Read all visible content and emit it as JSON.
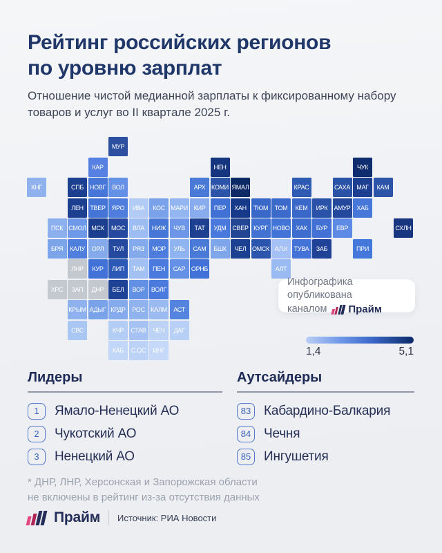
{
  "colors": {
    "background": "#eef0f3",
    "title_navy": "#1f3769",
    "subtitle_gray": "#3d4456",
    "tile_label": "#ffffff",
    "no_data_gray": "#c4c8cf",
    "badge_bg": "#ffffff",
    "badge_text": "#6e7585",
    "brand_navy": "#242d58",
    "brand_pink": "#e0487f",
    "brand_crimson": "#b02458",
    "legend_light": "#b9cef5",
    "legend_dark": "#0d2a68",
    "rank_border": "#5479c8",
    "rank_number": "#3a62ba",
    "list_text": "#262f55",
    "divider": "#8f97a7",
    "footnote_gray": "#9aa1ad",
    "source_text": "#333c52"
  },
  "header": {
    "title_line1": "Рейтинг российских регионов",
    "title_line2": "по уровню зарплат",
    "subtitle_line1": "Отношение чистой медианной зарплаты к фиксированному набору",
    "subtitle_line2": "товаров и услуг во II квартале 2025 г."
  },
  "attribution": {
    "line1": "Инфографика опубликована",
    "line2_prefix": "каналом",
    "brand": "Прайм"
  },
  "legend": {
    "min_label": "1,4",
    "max_label": "5,1"
  },
  "leaders": {
    "heading": "Лидеры",
    "items": [
      {
        "rank": "1",
        "name": "Ямало-Ненецкий АО"
      },
      {
        "rank": "2",
        "name": "Чукотский АО"
      },
      {
        "rank": "3",
        "name": "Ненецкий АО"
      }
    ]
  },
  "outsiders": {
    "heading": "Аутсайдеры",
    "items": [
      {
        "rank": "83",
        "name": "Кабардино-Балкария"
      },
      {
        "rank": "84",
        "name": "Чечня"
      },
      {
        "rank": "85",
        "name": "Ингушетия"
      }
    ]
  },
  "footnote": {
    "line1": "* ДНР, ЛНР, Херсонская и Запорожская области",
    "line2": "не включены в рейтинг из-за отсутствия данных"
  },
  "footer": {
    "brand": "Прайм",
    "source": "Источник: РИА Новости"
  },
  "chart_data": {
    "type": "heatmap",
    "subtype": "tile-cartogram-of-russian-regions",
    "title": "Рейтинг российских регионов по уровню зарплат",
    "subtitle": "Отношение чистой медианной зарплаты к фиксированному набору товаров и услуг во II квартале 2025 г.",
    "colorbar": {
      "min": 1.4,
      "max": 5.1,
      "min_label": "1,4",
      "max_label": "5,1",
      "from": "#b9cef5",
      "to": "#0d2a68",
      "position": "right-middle"
    },
    "no_data_note": "серые тайлы — нет данных (ДНР, ЛНР, ХРС, ЗАП)",
    "grid": {
      "cols": 19,
      "rows": 11,
      "pitch": 29.5,
      "tile": 28
    },
    "regions": [
      {
        "code": "МУР",
        "row": 0,
        "col": 4,
        "color": "#2c509f"
      },
      {
        "code": "КАР",
        "row": 1,
        "col": 3,
        "color": "#5681e2"
      },
      {
        "code": "НЕН",
        "row": 1,
        "col": 9,
        "color": "#15357e"
      },
      {
        "code": "ЧУК",
        "row": 1,
        "col": 16,
        "color": "#0f2c6f"
      },
      {
        "code": "КНГ",
        "row": 2,
        "col": 0,
        "color": "#8fb2ee"
      },
      {
        "code": "СПБ",
        "row": 2,
        "col": 2,
        "color": "#1d3f8f"
      },
      {
        "code": "НОВГ",
        "row": 2,
        "col": 3,
        "color": "#4676d8"
      },
      {
        "code": "ВОЛ",
        "row": 2,
        "col": 4,
        "color": "#6490e6"
      },
      {
        "code": "АРХ",
        "row": 2,
        "col": 8,
        "color": "#4a7ad8"
      },
      {
        "code": "КОМИ",
        "row": 2,
        "col": 9,
        "color": "#2c55aa"
      },
      {
        "code": "ЯМАЛ",
        "row": 2,
        "col": 10,
        "color": "#0d2966"
      },
      {
        "code": "КРАС",
        "row": 2,
        "col": 13,
        "color": "#2e5ab4"
      },
      {
        "code": "САХА",
        "row": 2,
        "col": 15,
        "color": "#2a52a6"
      },
      {
        "code": "МАГ",
        "row": 2,
        "col": 16,
        "color": "#1c3f92"
      },
      {
        "code": "КАМ",
        "row": 2,
        "col": 17,
        "color": "#2c55aa"
      },
      {
        "code": "ЛЕН",
        "row": 3,
        "col": 2,
        "color": "#1d3f8f"
      },
      {
        "code": "ТВЕР",
        "row": 3,
        "col": 3,
        "color": "#4474d6"
      },
      {
        "code": "ЯРО",
        "row": 3,
        "col": 4,
        "color": "#4e7dde"
      },
      {
        "code": "ИВА",
        "row": 3,
        "col": 5,
        "color": "#b2cbf4"
      },
      {
        "code": "КОС",
        "row": 3,
        "col": 6,
        "color": "#7aa2ea"
      },
      {
        "code": "МАРИ",
        "row": 3,
        "col": 7,
        "color": "#94b6f0"
      },
      {
        "code": "КИР",
        "row": 3,
        "col": 8,
        "color": "#88acee"
      },
      {
        "code": "ПЕР",
        "row": 3,
        "col": 9,
        "color": "#4171d4"
      },
      {
        "code": "ХАН",
        "row": 3,
        "col": 10,
        "color": "#17398a"
      },
      {
        "code": "ТЮМ",
        "row": 3,
        "col": 11,
        "color": "#3a68c8"
      },
      {
        "code": "ТОМ",
        "row": 3,
        "col": 12,
        "color": "#3c6acb"
      },
      {
        "code": "КЕМ",
        "row": 3,
        "col": 13,
        "color": "#3a68c8"
      },
      {
        "code": "ИРК",
        "row": 3,
        "col": 14,
        "color": "#2a52a8"
      },
      {
        "code": "АМУР",
        "row": 3,
        "col": 15,
        "color": "#24499c"
      },
      {
        "code": "ХАБ",
        "row": 3,
        "col": 16,
        "color": "#4777d8"
      },
      {
        "code": "ПСК",
        "row": 4,
        "col": 1,
        "color": "#8cb0ee"
      },
      {
        "code": "СМОЛ",
        "row": 4,
        "col": 2,
        "color": "#6e98e8"
      },
      {
        "code": "МСК",
        "row": 4,
        "col": 3,
        "color": "#1c3e8e"
      },
      {
        "code": "МОС",
        "row": 4,
        "col": 4,
        "color": "#25499e"
      },
      {
        "code": "ВЛА",
        "row": 4,
        "col": 5,
        "color": "#9dbcf2"
      },
      {
        "code": "НИЖ",
        "row": 4,
        "col": 6,
        "color": "#4676d6"
      },
      {
        "code": "ЧУВ",
        "row": 4,
        "col": 7,
        "color": "#6d95e8"
      },
      {
        "code": "ТАТ",
        "row": 4,
        "col": 8,
        "color": "#1e4091"
      },
      {
        "code": "УДМ",
        "row": 4,
        "col": 9,
        "color": "#4979dc"
      },
      {
        "code": "СВЕР",
        "row": 4,
        "col": 10,
        "color": "#224694"
      },
      {
        "code": "КУРГ",
        "row": 4,
        "col": 11,
        "color": "#4272d2"
      },
      {
        "code": "НОВО",
        "row": 4,
        "col": 12,
        "color": "#4273d6"
      },
      {
        "code": "ХАК",
        "row": 4,
        "col": 13,
        "color": "#3e6dd0"
      },
      {
        "code": "БУР",
        "row": 4,
        "col": 14,
        "color": "#4270d4"
      },
      {
        "code": "ЕВР",
        "row": 4,
        "col": 15,
        "color": "#5c8ae4"
      },
      {
        "code": "СХЛН",
        "row": 4,
        "col": 18,
        "color": "#17367f"
      },
      {
        "code": "БРЯ",
        "row": 5,
        "col": 1,
        "color": "#7ca4ea"
      },
      {
        "code": "КАЛУ",
        "row": 5,
        "col": 2,
        "color": "#4f7edc"
      },
      {
        "code": "ОРЛ",
        "row": 5,
        "col": 3,
        "color": "#84aaec"
      },
      {
        "code": "ТУЛ",
        "row": 5,
        "col": 4,
        "color": "#25499e"
      },
      {
        "code": "РЯЗ",
        "row": 5,
        "col": 5,
        "color": "#84aaec"
      },
      {
        "code": "МОР",
        "row": 5,
        "col": 6,
        "color": "#4d7cdc"
      },
      {
        "code": "УЛЬ",
        "row": 5,
        "col": 7,
        "color": "#90b4f0"
      },
      {
        "code": "САМ",
        "row": 5,
        "col": 8,
        "color": "#4a7ad8"
      },
      {
        "code": "БШК",
        "row": 5,
        "col": 9,
        "color": "#7fa6ea"
      },
      {
        "code": "ЧЕЛ",
        "row": 5,
        "col": 10,
        "color": "#1d4191"
      },
      {
        "code": "ОМСК",
        "row": 5,
        "col": 11,
        "color": "#2c56ae"
      },
      {
        "code": "АЛ.К",
        "row": 5,
        "col": 12,
        "color": "#a4c0f4"
      },
      {
        "code": "ТУВА",
        "row": 5,
        "col": 13,
        "color": "#4472d6"
      },
      {
        "code": "ЗАБ",
        "row": 5,
        "col": 14,
        "color": "#1f4296"
      },
      {
        "code": "ПРИ",
        "row": 5,
        "col": 16,
        "color": "#4478da"
      },
      {
        "code": "ЛНР",
        "row": 6,
        "col": 2,
        "color": "#c4c8cf"
      },
      {
        "code": "КУР",
        "row": 6,
        "col": 3,
        "color": "#4272d8"
      },
      {
        "code": "ЛИП",
        "row": 6,
        "col": 4,
        "color": "#2d59b6"
      },
      {
        "code": "ТАМ",
        "row": 6,
        "col": 5,
        "color": "#a2c0f2"
      },
      {
        "code": "ПЕН",
        "row": 6,
        "col": 6,
        "color": "#4a7ade"
      },
      {
        "code": "САР",
        "row": 6,
        "col": 7,
        "color": "#6490e6"
      },
      {
        "code": "ОРНБ",
        "row": 6,
        "col": 8,
        "color": "#4272d8"
      },
      {
        "code": "АЛТ",
        "row": 6,
        "col": 12,
        "color": "#9abaf2"
      },
      {
        "code": "ХРС",
        "row": 7,
        "col": 1,
        "color": "#c4c8cf"
      },
      {
        "code": "ЗАП",
        "row": 7,
        "col": 2,
        "color": "#c4c8cf"
      },
      {
        "code": "ДНР",
        "row": 7,
        "col": 3,
        "color": "#c4c8cf"
      },
      {
        "code": "БЕЛ",
        "row": 7,
        "col": 4,
        "color": "#1e4296"
      },
      {
        "code": "ВОР",
        "row": 7,
        "col": 5,
        "color": "#6290e4"
      },
      {
        "code": "ВОЛГ",
        "row": 7,
        "col": 6,
        "color": "#4a7ade"
      },
      {
        "code": "КРЫМ",
        "row": 8,
        "col": 2,
        "color": "#8fb2ee"
      },
      {
        "code": "АДЫГ",
        "row": 8,
        "col": 3,
        "color": "#7aa2e8"
      },
      {
        "code": "КРДР",
        "row": 8,
        "col": 4,
        "color": "#86abec"
      },
      {
        "code": "РОС",
        "row": 8,
        "col": 5,
        "color": "#90b3ee"
      },
      {
        "code": "КАЛМ",
        "row": 8,
        "col": 6,
        "color": "#9bbaf0"
      },
      {
        "code": "АСТ",
        "row": 8,
        "col": 7,
        "color": "#5584e0"
      },
      {
        "code": "СВС",
        "row": 9,
        "col": 2,
        "color": "#aac6f2"
      },
      {
        "code": "КЧР",
        "row": 9,
        "col": 4,
        "color": "#b4cdf4"
      },
      {
        "code": "СТАВ",
        "row": 9,
        "col": 5,
        "color": "#a5c2f2"
      },
      {
        "code": "ЧЕЧ",
        "row": 9,
        "col": 6,
        "color": "#bdd3f6"
      },
      {
        "code": "ДАГ",
        "row": 9,
        "col": 7,
        "color": "#b8d0f5"
      },
      {
        "code": "КАБ",
        "row": 10,
        "col": 4,
        "color": "#c2d6f7"
      },
      {
        "code": "С.ОС",
        "row": 10,
        "col": 5,
        "color": "#bcd2f6"
      },
      {
        "code": "ИНГ",
        "row": 10,
        "col": 6,
        "color": "#c6d9f8"
      }
    ]
  }
}
